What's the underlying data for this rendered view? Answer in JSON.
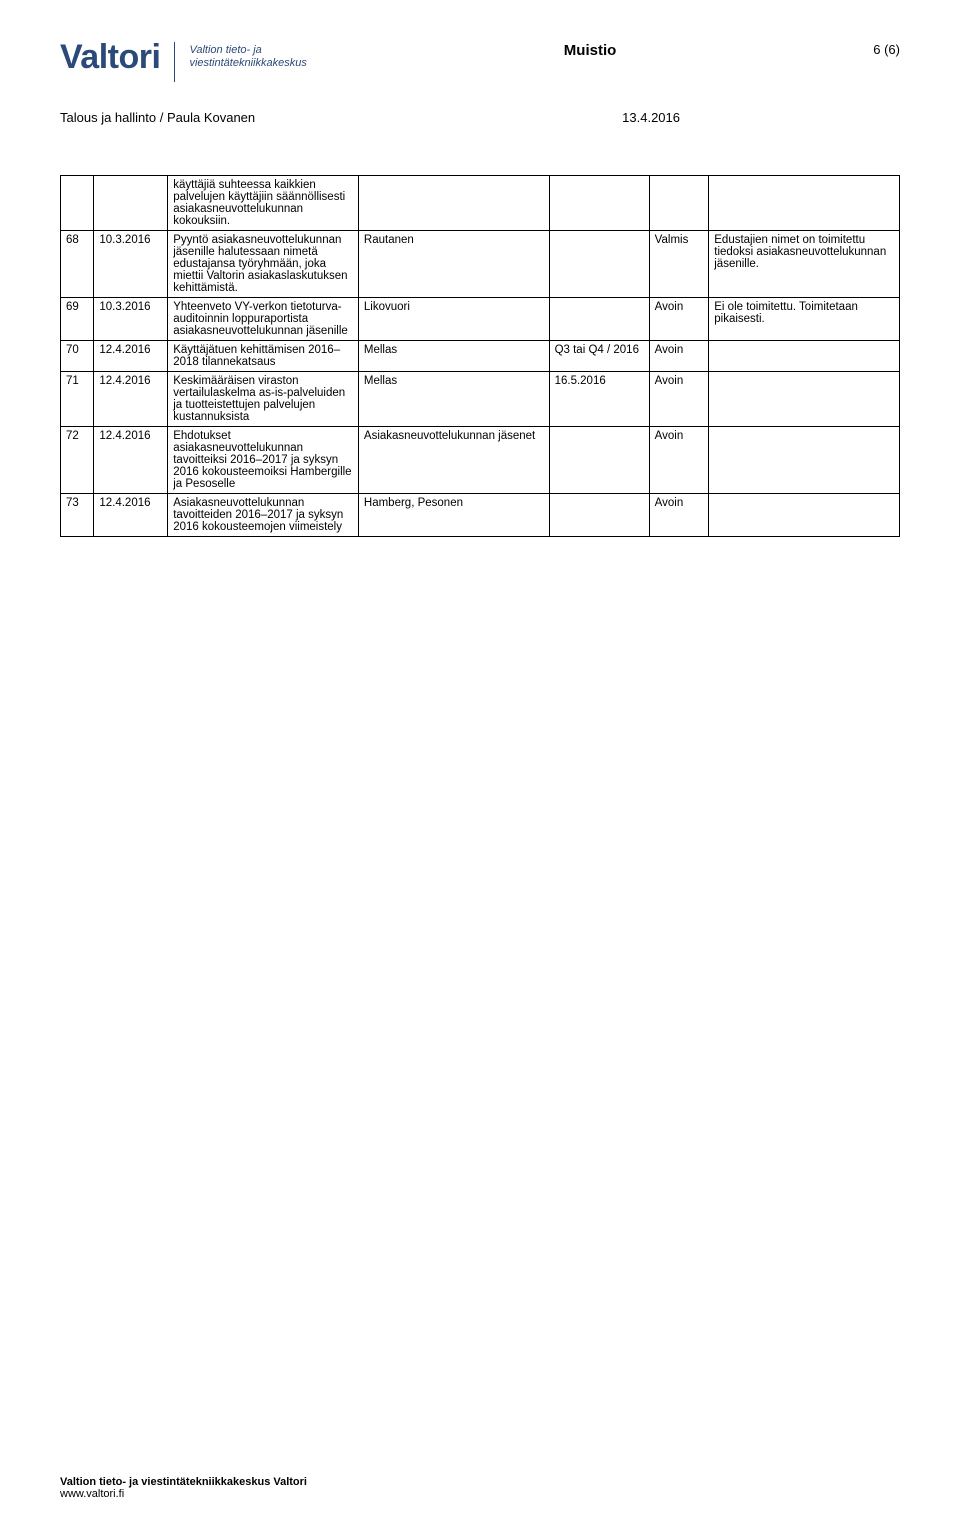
{
  "logo": {
    "main": "Valtori",
    "sub_line1": "Valtion tieto- ja",
    "sub_line2": "viestintätekniikkakeskus"
  },
  "doc_title": "Muistio",
  "page_number": "6 (6)",
  "subheader": {
    "left": "Talous ja hallinto / Paula Kovanen",
    "right": "13.4.2016"
  },
  "top_continuation": {
    "desc": "käyttäjiä suhteessa kaikkien palvelujen käyttäjiin säännöllisesti asiakasneuvottelukunnan kokouksiin."
  },
  "rows": [
    {
      "idx": "68",
      "date": "10.3.2016",
      "desc": "Pyyntö asiakasneuvottelukunnan jäsenille halutessaan nimetä edustajansa työryhmään, joka miettii Valtorin asiakaslaskutuksen kehittämistä.",
      "resp": "Rautanen",
      "due": "",
      "status": "Valmis",
      "note": "Edustajien nimet on toimitettu tiedoksi asiakasneuvottelukunnan jäsenille."
    },
    {
      "idx": "69",
      "date": "10.3.2016",
      "desc": "Yhteenveto VY-verkon tietoturva-auditoinnin loppuraportista asiakasneuvottelukunnan jäsenille",
      "resp": "Likovuori",
      "due": "",
      "status": "Avoin",
      "note": "Ei ole toimitettu. Toimitetaan pikaisesti."
    },
    {
      "idx": "70",
      "date": "12.4.2016",
      "desc": "Käyttäjätuen kehittämisen 2016–2018 tilannekatsaus",
      "resp": "Mellas",
      "due": "Q3 tai Q4 / 2016",
      "status": "Avoin",
      "note": ""
    },
    {
      "idx": "71",
      "date": "12.4.2016",
      "desc": "Keskimääräisen viraston vertailulaskelma as-is-palveluiden ja tuotteistettujen palvelujen kustannuksista",
      "resp": "Mellas",
      "due": "16.5.2016",
      "status": "Avoin",
      "note": ""
    },
    {
      "idx": "72",
      "date": "12.4.2016",
      "desc": "Ehdotukset asiakasneuvottelukunnan tavoitteiksi 2016–2017 ja syksyn 2016 kokousteemoiksi Hambergille ja Pesoselle",
      "resp": "Asiakasneuvottelukunnan jäsenet",
      "due": "",
      "status": "Avoin",
      "note": ""
    },
    {
      "idx": "73",
      "date": "12.4.2016",
      "desc": "Asiakasneuvottelukunnan tavoitteiden 2016–2017 ja syksyn 2016 kokousteemojen viimeistely",
      "resp": "Hamberg, Pesonen",
      "due": "",
      "status": "Avoin",
      "note": ""
    }
  ],
  "footer": {
    "line1": "Valtion tieto- ja viestintätekniikkakeskus Valtori",
    "line2": "www.valtori.fi"
  }
}
